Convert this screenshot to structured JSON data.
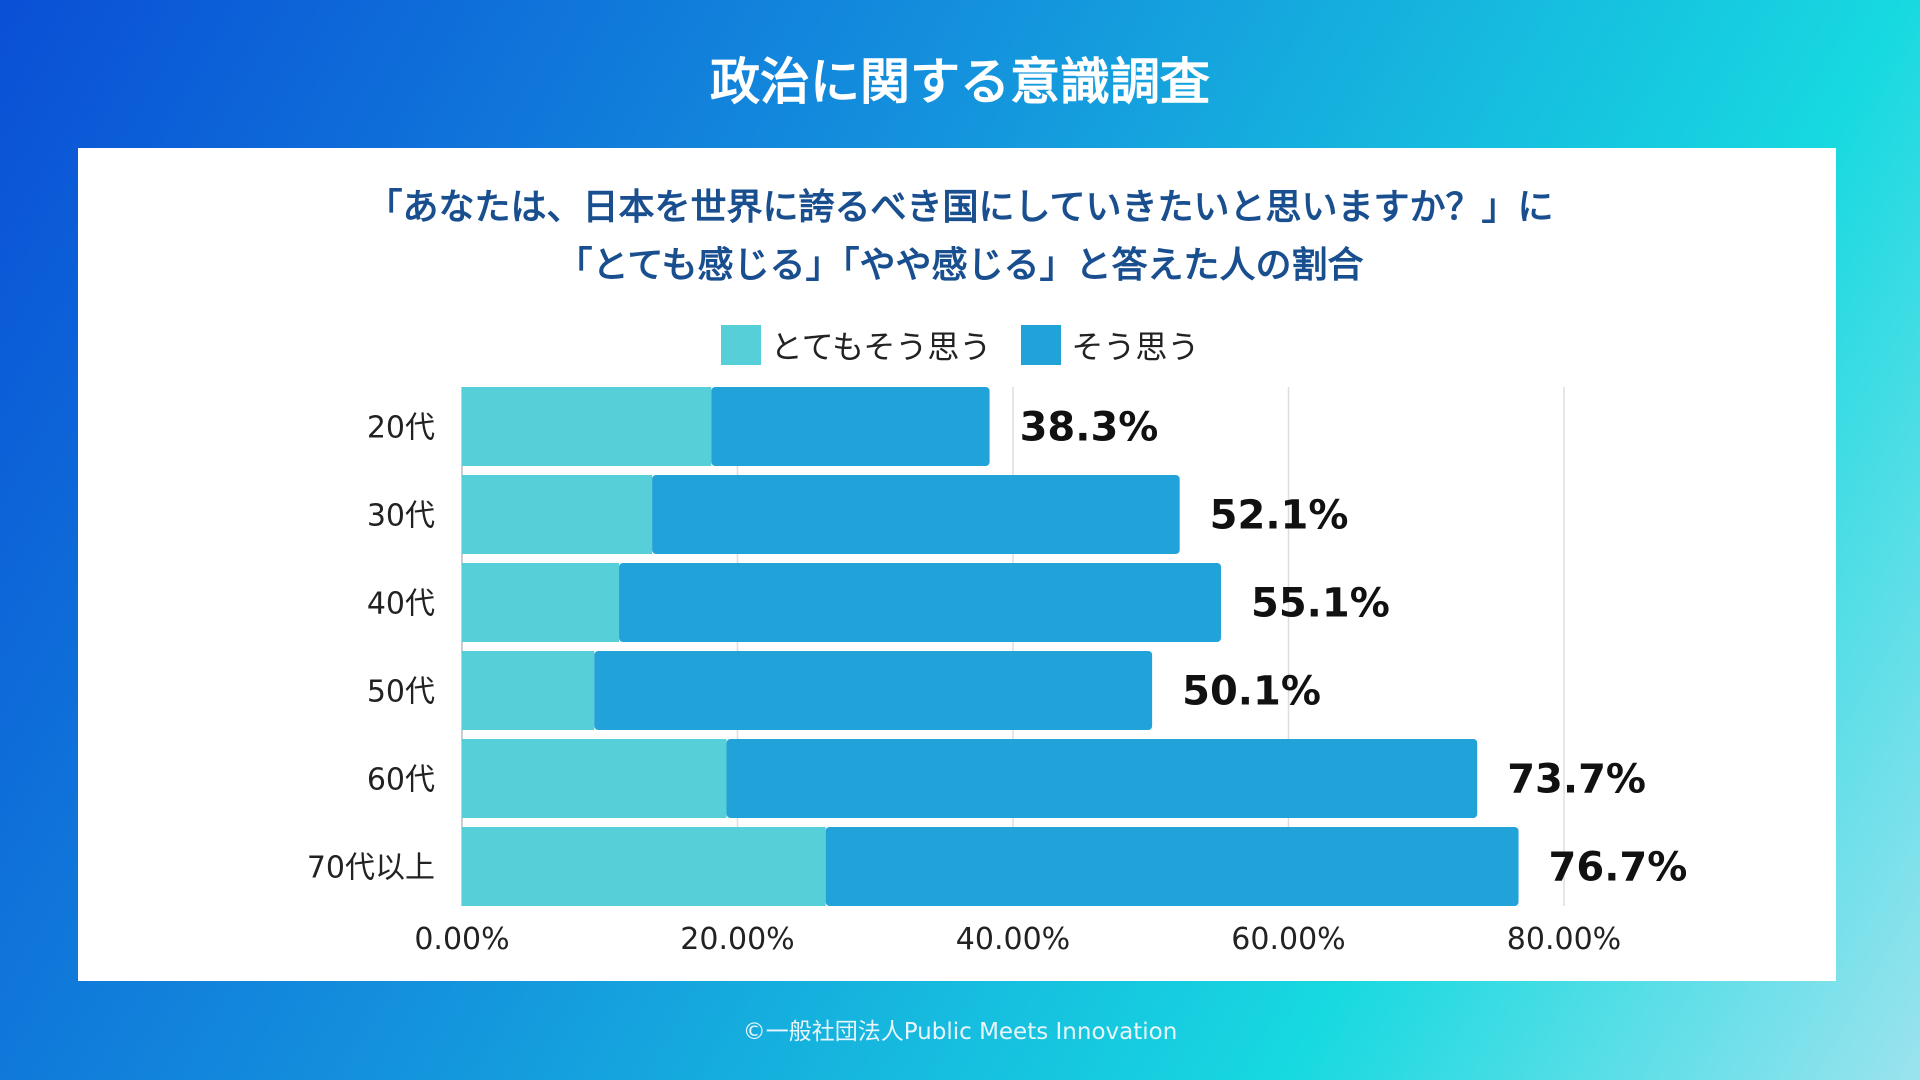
{
  "header": {
    "title": "政治に関する意識調査"
  },
  "footer": {
    "credit": "©一般社団法人Public Meets Innovation"
  },
  "chart_data": {
    "type": "bar",
    "orientation": "horizontal",
    "stacked": true,
    "title_lines": [
      "「あなたは、日本を世界に誇るべき国にしていきたいと思いますか？」に",
      "「とても感じる」「やや感じる」と答えた人の割合"
    ],
    "categories": [
      "20代",
      "30代",
      "40代",
      "50代",
      "60代",
      "70代以上"
    ],
    "series": [
      {
        "name": "とてもそう思う",
        "color": "#56cfd8",
        "values": [
          18.1,
          13.8,
          11.4,
          9.6,
          19.2,
          26.4
        ]
      },
      {
        "name": "そう思う",
        "color": "#21a2d8",
        "values": [
          20.2,
          38.3,
          43.7,
          40.5,
          54.5,
          50.3
        ]
      }
    ],
    "total_labels": [
      "38.3%",
      "52.1%",
      "55.1%",
      "50.1%",
      "73.7%",
      "76.7%"
    ],
    "totals": [
      38.3,
      52.1,
      55.1,
      50.1,
      73.7,
      76.7
    ],
    "xlim": [
      0,
      80
    ],
    "xticks": [
      "0.00%",
      "20.00%",
      "40.00%",
      "60.00%",
      "80.00%"
    ],
    "grid": true,
    "legend_position": "top"
  }
}
